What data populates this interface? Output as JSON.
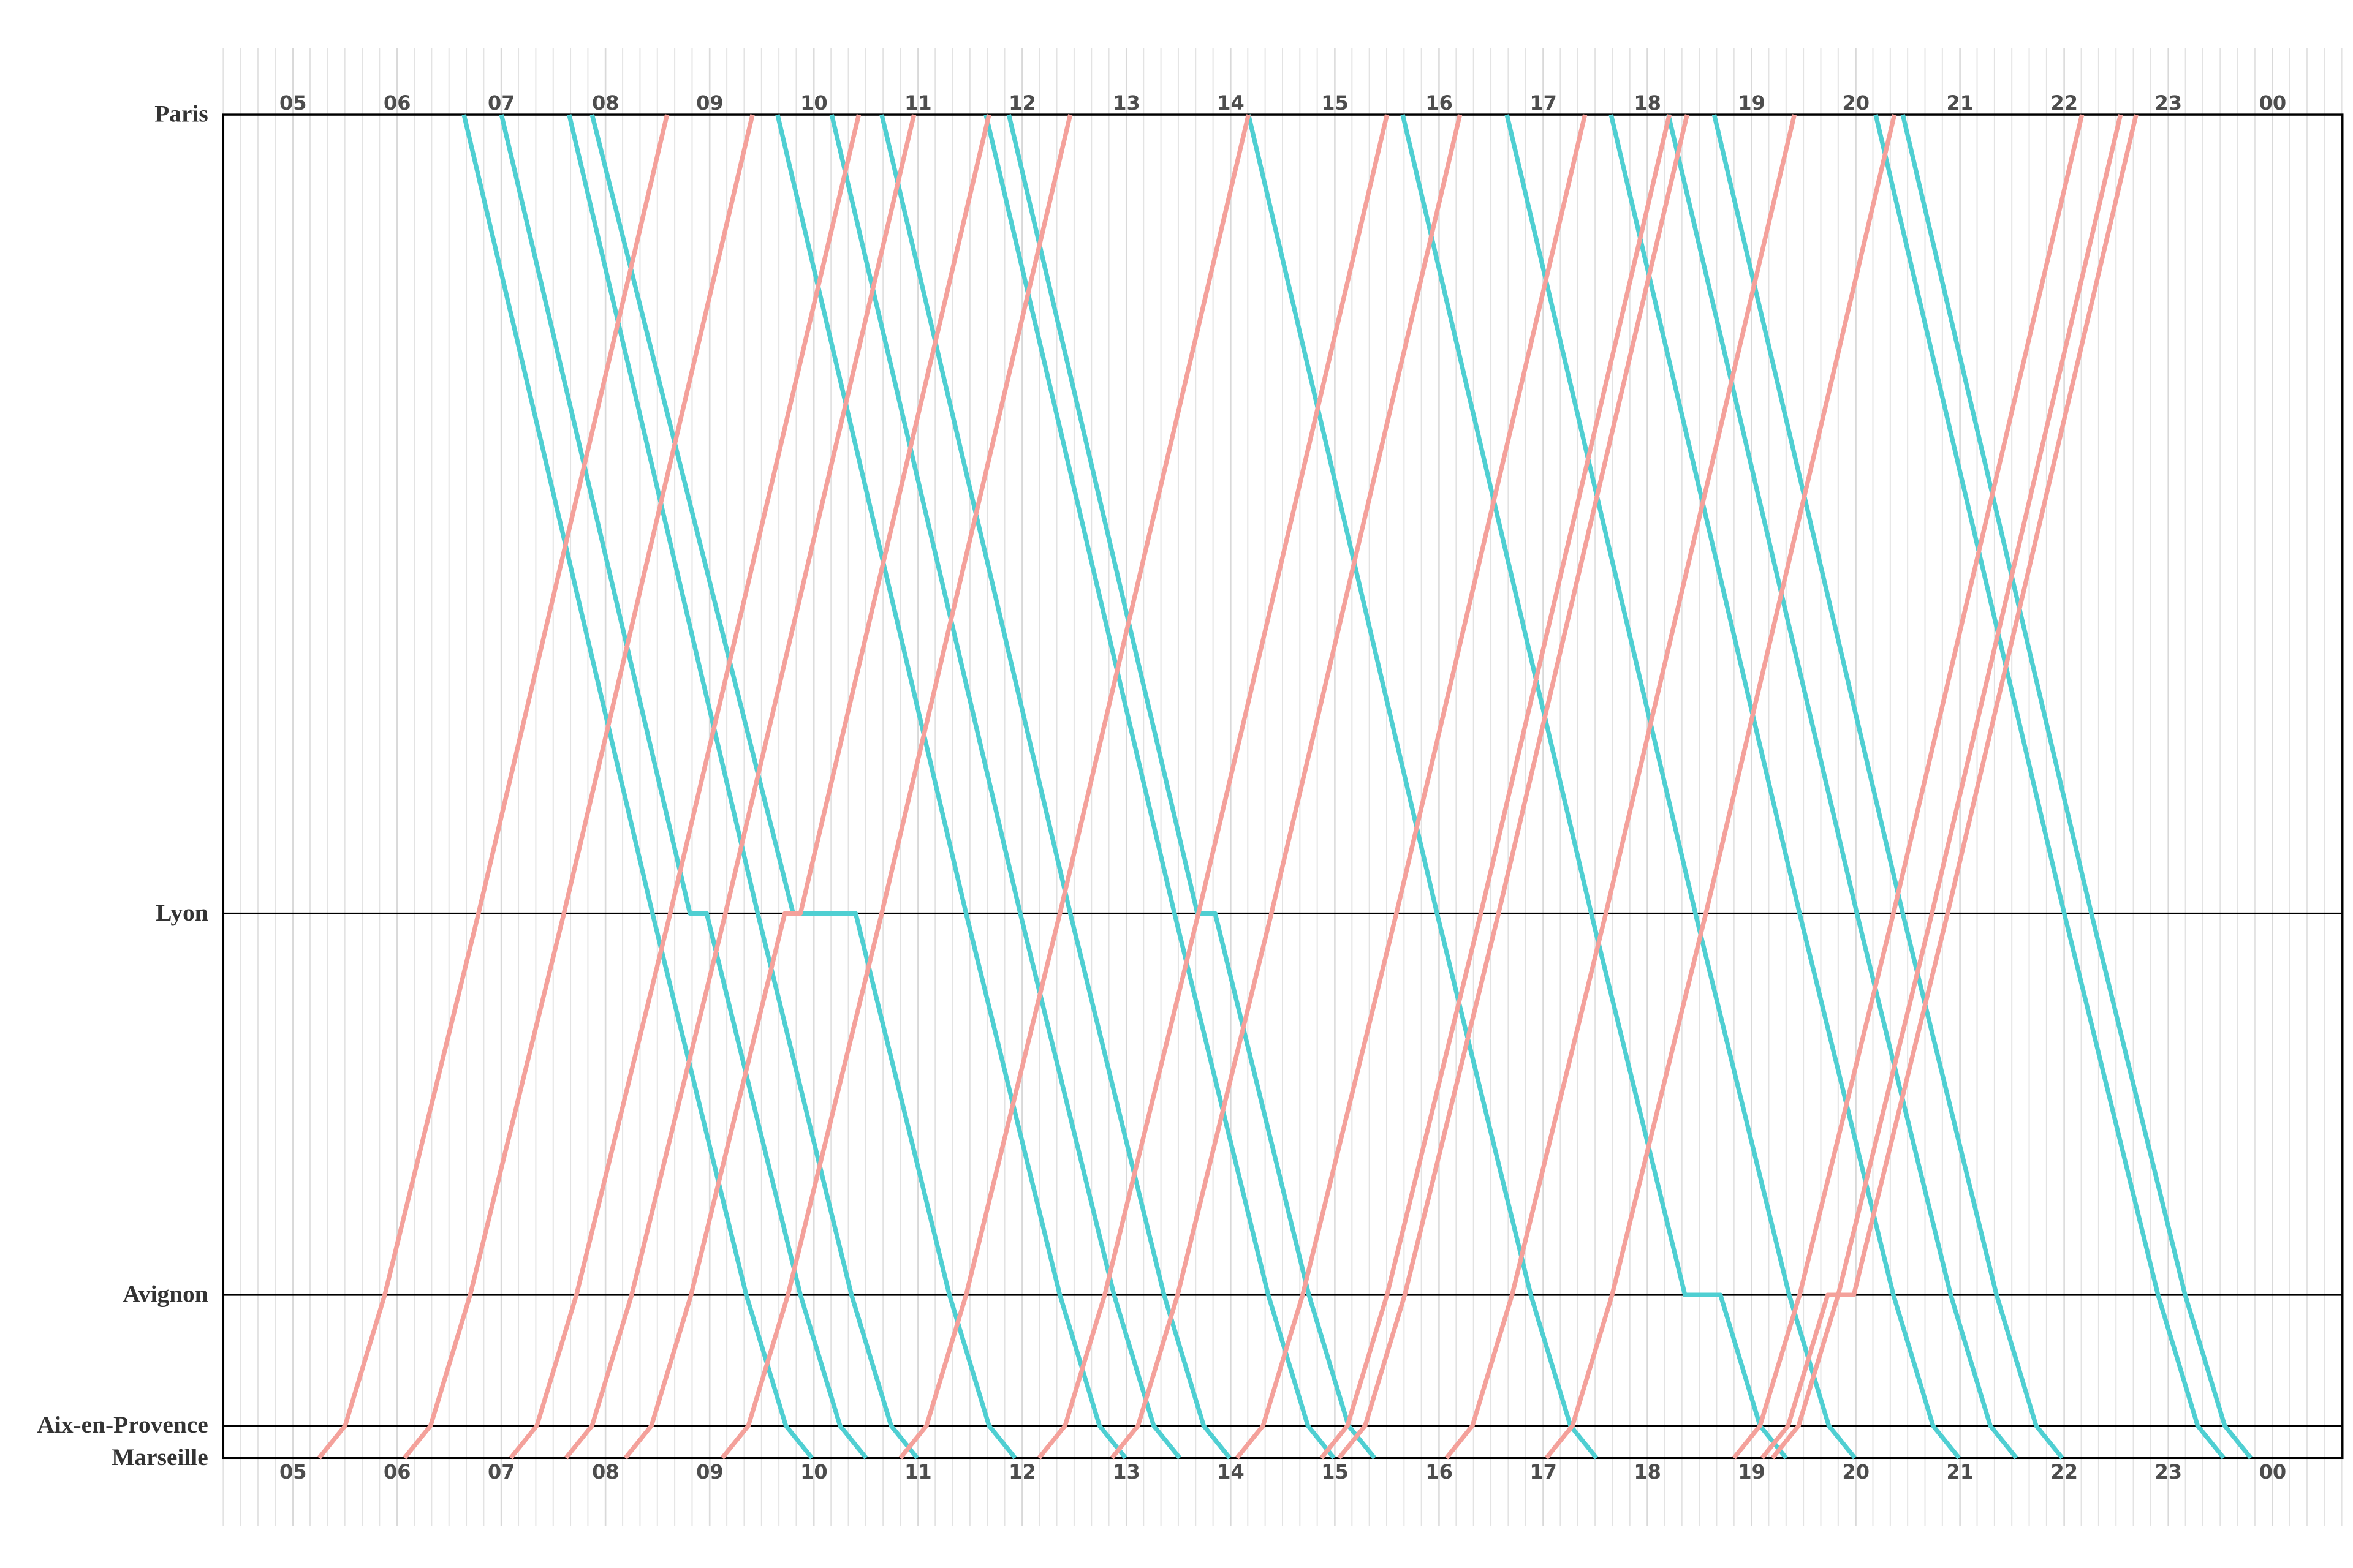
{
  "chart_data": {
    "type": "line",
    "xlim": [
      4.33,
      24.67
    ],
    "ylim": [
      750,
      0
    ],
    "x_minor_step": 0.1666667,
    "grid": true,
    "xticks": [
      {
        "value": 5,
        "label": "05"
      },
      {
        "value": 6,
        "label": "06"
      },
      {
        "value": 7,
        "label": "07"
      },
      {
        "value": 8,
        "label": "08"
      },
      {
        "value": 9,
        "label": "09"
      },
      10,
      11,
      12,
      13,
      14,
      15,
      16,
      17,
      18,
      19,
      20,
      21,
      22,
      23,
      {
        "value": 24,
        "label": "00"
      }
    ],
    "yticks": [
      {
        "value": 0,
        "label": "Paris"
      },
      {
        "value": 446,
        "label": "Lyon"
      },
      {
        "value": 659,
        "label": "Avignon"
      },
      {
        "value": 732,
        "label": "Aix-en-Provence"
      },
      {
        "value": 750,
        "label": "Marseille"
      }
    ],
    "series": [
      {
        "color": "#4fcfd2",
        "x": [
          6.64,
          8.45,
          9.35,
          9.73,
          9.98
        ],
        "y": [
          0,
          446,
          659,
          732,
          750
        ]
      },
      {
        "color": "#4fcfd2",
        "x": [
          7.0,
          8.81,
          8.97,
          9.87,
          10.25,
          10.5
        ],
        "y": [
          0,
          446,
          446,
          659,
          732,
          750
        ]
      },
      {
        "color": "#4fcfd2",
        "x": [
          7.65,
          9.46,
          10.36,
          10.74,
          10.99
        ],
        "y": [
          0,
          446,
          659,
          732,
          750
        ]
      },
      {
        "color": "#4fcfd2",
        "x": [
          7.87,
          9.8,
          10.4,
          11.3,
          11.68,
          11.93
        ],
        "y": [
          0,
          446,
          446,
          659,
          732,
          750
        ]
      },
      {
        "color": "#4fcfd2",
        "x": [
          9.65,
          11.46,
          12.36,
          12.74,
          12.99
        ],
        "y": [
          0,
          446,
          659,
          732,
          750
        ]
      },
      {
        "color": "#4fcfd2",
        "x": [
          10.17,
          11.98,
          12.88,
          13.26,
          13.51
        ],
        "y": [
          0,
          446,
          659,
          732,
          750
        ]
      },
      {
        "color": "#4fcfd2",
        "x": [
          10.65,
          12.46,
          13.36,
          13.74,
          13.99
        ],
        "y": [
          0,
          446,
          659,
          732,
          750
        ]
      },
      {
        "color": "#4fcfd2",
        "x": [
          11.65,
          13.46,
          14.36,
          14.74,
          14.99
        ],
        "y": [
          0,
          446,
          659,
          732,
          750
        ]
      },
      {
        "color": "#4fcfd2",
        "x": [
          11.87,
          13.68,
          13.85,
          14.75,
          15.13,
          15.38
        ],
        "y": [
          0,
          446,
          446,
          659,
          732,
          750
        ]
      },
      {
        "color": "#4fcfd2",
        "x": [
          14.17,
          15.98,
          16.88,
          17.26,
          17.51
        ],
        "y": [
          0,
          446,
          659,
          732,
          750
        ]
      },
      {
        "color": "#4fcfd2",
        "x": [
          15.65,
          17.46,
          18.36,
          18.7,
          19.08,
          19.33
        ],
        "y": [
          0,
          446,
          659,
          659,
          732,
          750
        ]
      },
      {
        "color": "#4fcfd2",
        "x": [
          16.65,
          18.46,
          19.36,
          19.74,
          19.99
        ],
        "y": [
          0,
          446,
          659,
          732,
          750
        ]
      },
      {
        "color": "#4fcfd2",
        "x": [
          17.65,
          19.46,
          20.36,
          20.74,
          20.99
        ],
        "y": [
          0,
          446,
          659,
          732,
          750
        ]
      },
      {
        "color": "#4fcfd2",
        "x": [
          18.2,
          20.01,
          20.91,
          21.29,
          21.54
        ],
        "y": [
          0,
          446,
          659,
          732,
          750
        ]
      },
      {
        "color": "#4fcfd2",
        "x": [
          18.64,
          20.45,
          21.35,
          21.73,
          21.98
        ],
        "y": [
          0,
          446,
          659,
          732,
          750
        ]
      },
      {
        "color": "#4fcfd2",
        "x": [
          20.19,
          22.0,
          22.9,
          23.28,
          23.53
        ],
        "y": [
          0,
          446,
          659,
          732,
          750
        ]
      },
      {
        "color": "#4fcfd2",
        "x": [
          20.45,
          22.26,
          23.16,
          23.54,
          23.79
        ],
        "y": [
          0,
          446,
          659,
          732,
          750
        ]
      },
      {
        "color": "#f4a19b",
        "x": [
          5.25,
          5.5,
          5.88,
          6.78,
          8.59
        ],
        "y": [
          750,
          732,
          659,
          446,
          0
        ]
      },
      {
        "color": "#f4a19b",
        "x": [
          6.07,
          6.32,
          6.7,
          7.6,
          9.41
        ],
        "y": [
          750,
          732,
          659,
          446,
          0
        ]
      },
      {
        "color": "#f4a19b",
        "x": [
          7.09,
          7.34,
          7.72,
          8.62,
          10.43
        ],
        "y": [
          750,
          732,
          659,
          446,
          0
        ]
      },
      {
        "color": "#f4a19b",
        "x": [
          7.62,
          7.87,
          8.25,
          9.15,
          10.96
        ],
        "y": [
          750,
          732,
          659,
          446,
          0
        ]
      },
      {
        "color": "#f4a19b",
        "x": [
          8.19,
          8.44,
          8.82,
          9.72,
          9.87,
          11.68
        ],
        "y": [
          750,
          732,
          659,
          446,
          446,
          0
        ]
      },
      {
        "color": "#f4a19b",
        "x": [
          9.12,
          9.37,
          9.75,
          10.65,
          12.46
        ],
        "y": [
          750,
          732,
          659,
          446,
          0
        ]
      },
      {
        "color": "#f4a19b",
        "x": [
          10.83,
          11.08,
          11.46,
          12.36,
          14.17
        ],
        "y": [
          750,
          732,
          659,
          446,
          0
        ]
      },
      {
        "color": "#f4a19b",
        "x": [
          12.16,
          12.41,
          12.79,
          13.69,
          15.5
        ],
        "y": [
          750,
          732,
          659,
          446,
          0
        ]
      },
      {
        "color": "#f4a19b",
        "x": [
          12.86,
          13.11,
          13.49,
          14.39,
          16.2
        ],
        "y": [
          750,
          732,
          659,
          446,
          0
        ]
      },
      {
        "color": "#f4a19b",
        "x": [
          14.06,
          14.31,
          14.69,
          15.59,
          17.4
        ],
        "y": [
          750,
          732,
          659,
          446,
          0
        ]
      },
      {
        "color": "#f4a19b",
        "x": [
          14.87,
          15.12,
          15.5,
          16.4,
          18.21
        ],
        "y": [
          750,
          732,
          659,
          446,
          0
        ]
      },
      {
        "color": "#f4a19b",
        "x": [
          15.04,
          15.29,
          15.67,
          16.57,
          18.38
        ],
        "y": [
          750,
          732,
          659,
          446,
          0
        ]
      },
      {
        "color": "#f4a19b",
        "x": [
          16.07,
          16.32,
          16.7,
          17.6,
          19.41
        ],
        "y": [
          750,
          732,
          659,
          446,
          0
        ]
      },
      {
        "color": "#f4a19b",
        "x": [
          17.03,
          17.28,
          17.66,
          18.56,
          20.37
        ],
        "y": [
          750,
          732,
          659,
          446,
          0
        ]
      },
      {
        "color": "#f4a19b",
        "x": [
          18.83,
          19.08,
          19.46,
          20.36,
          22.17
        ],
        "y": [
          750,
          732,
          659,
          446,
          0
        ]
      },
      {
        "color": "#f4a19b",
        "x": [
          19.1,
          19.35,
          19.73,
          19.98,
          20.88,
          22.69
        ],
        "y": [
          750,
          732,
          659,
          659,
          446,
          0
        ]
      },
      {
        "color": "#f4a19b",
        "x": [
          19.2,
          19.45,
          19.83,
          20.73,
          22.54
        ],
        "y": [
          750,
          732,
          659,
          446,
          0
        ]
      }
    ]
  }
}
